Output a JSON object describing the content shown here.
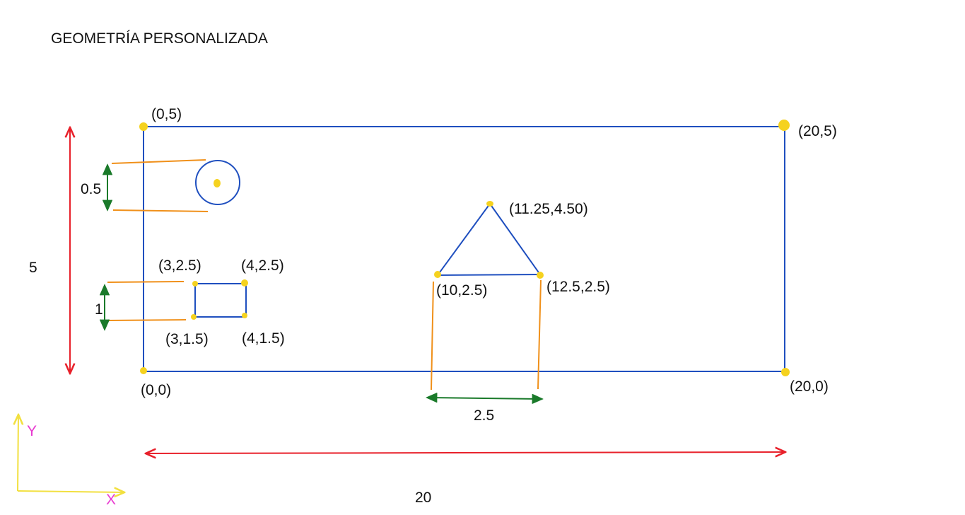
{
  "title": "GEOMETRÍA PERSONALIZADA",
  "colors": {
    "outline": "#1f4fbf",
    "point": "#f5d21f",
    "dimension_total": "#e8202a",
    "dimension_local": "#1a7a2a",
    "extension": "#f0901a",
    "axis": "#f2e040",
    "axis_label_y": "#e83ad0",
    "axis_label_x": "#e83ad0"
  },
  "rectangle_corners": {
    "top_left": "(0,5)",
    "top_right": "(20,5)",
    "bottom_left": "(0,0)",
    "bottom_right": "(20,0)"
  },
  "square_corners": {
    "top_left": "(3,2.5)",
    "top_right": "(4,2.5)",
    "bottom_left": "(3,1.5)",
    "bottom_right": "(4,1.5)"
  },
  "triangle_vertices": {
    "apex": "(11.25,4.50)",
    "left": "(10,2.5)",
    "right": "(12.5,2.5)"
  },
  "dimensions": {
    "height": "5",
    "width": "20",
    "circle_diameter": "0.5",
    "square_side": "1",
    "triangle_base": "2.5"
  },
  "axes": {
    "y": "Y",
    "x": "X"
  }
}
